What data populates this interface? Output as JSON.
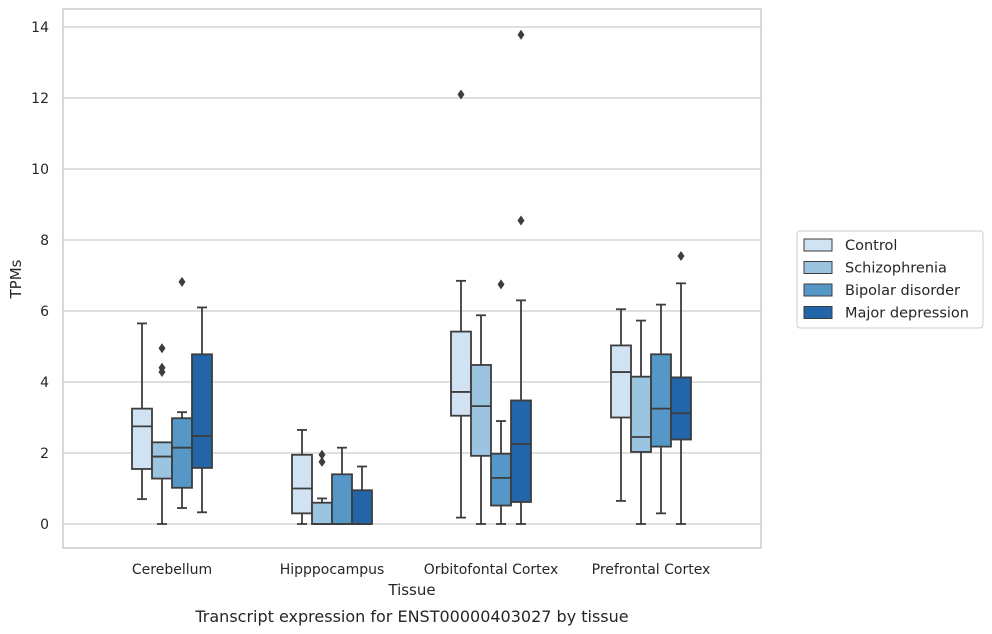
{
  "chart_data": {
    "type": "box",
    "title": "",
    "caption": "Transcript expression for ENST00000403027 by tissue",
    "xlabel": "Tissue",
    "ylabel": "TPMs",
    "ylim": [
      -0.65,
      14.5
    ],
    "yticks": [
      0,
      2,
      4,
      6,
      8,
      10,
      12,
      14
    ],
    "ytick_labels": [
      "0",
      "2",
      "4",
      "6",
      "8",
      "10",
      "12",
      "14"
    ],
    "grid": "horizontal",
    "legend_position": "right",
    "categories": [
      "Cerebellum",
      "Hipppocampus",
      "Orbitofontal Cortex",
      "Prefrontal Cortex"
    ],
    "series": [
      {
        "name": "Control",
        "color": "#d1e2f2",
        "boxes": [
          {
            "whislo": 0.7,
            "q1": 1.55,
            "med": 2.75,
            "q3": 3.25,
            "whishi": 5.65,
            "fliers": []
          },
          {
            "whislo": 0.0,
            "q1": 0.3,
            "med": 1.0,
            "q3": 1.95,
            "whishi": 2.65,
            "fliers": []
          },
          {
            "whislo": 0.18,
            "q1": 3.05,
            "med": 3.72,
            "q3": 5.42,
            "whishi": 6.85,
            "fliers": [
              12.1
            ]
          },
          {
            "whislo": 0.65,
            "q1": 3.0,
            "med": 4.28,
            "q3": 5.03,
            "whishi": 6.05,
            "fliers": []
          }
        ]
      },
      {
        "name": "Schizophrenia",
        "color": "#9ac4e0",
        "boxes": [
          {
            "whislo": 0.0,
            "q1": 1.28,
            "med": 1.9,
            "q3": 2.3,
            "whishi": 2.3,
            "fliers": [
              4.28,
              4.4,
              4.95
            ]
          },
          {
            "whislo": 0.0,
            "q1": 0.0,
            "med": 0.0,
            "q3": 0.6,
            "whishi": 0.72,
            "fliers": [
              1.75,
              1.95
            ]
          },
          {
            "whislo": 0.0,
            "q1": 1.92,
            "med": 3.32,
            "q3": 4.48,
            "whishi": 5.88,
            "fliers": []
          },
          {
            "whislo": 0.0,
            "q1": 2.03,
            "med": 2.45,
            "q3": 4.15,
            "whishi": 5.73,
            "fliers": []
          }
        ]
      },
      {
        "name": "Bipolar disorder",
        "color": "#5597c6",
        "boxes": [
          {
            "whislo": 0.45,
            "q1": 1.02,
            "med": 2.15,
            "q3": 2.98,
            "whishi": 3.15,
            "fliers": [
              6.82
            ]
          },
          {
            "whislo": 0.0,
            "q1": 0.0,
            "med": 0.0,
            "q3": 1.4,
            "whishi": 2.15,
            "fliers": []
          },
          {
            "whislo": 0.0,
            "q1": 0.52,
            "med": 1.3,
            "q3": 1.98,
            "whishi": 2.9,
            "fliers": [
              6.75
            ]
          },
          {
            "whislo": 0.3,
            "q1": 2.18,
            "med": 3.25,
            "q3": 4.78,
            "whishi": 6.18,
            "fliers": []
          }
        ]
      },
      {
        "name": "Major depression",
        "color": "#2265a9",
        "boxes": [
          {
            "whislo": 0.33,
            "q1": 1.58,
            "med": 2.48,
            "q3": 4.78,
            "whishi": 6.1,
            "fliers": []
          },
          {
            "whislo": 0.0,
            "q1": 0.0,
            "med": 0.0,
            "q3": 0.95,
            "whishi": 1.62,
            "fliers": []
          },
          {
            "whislo": 0.0,
            "q1": 0.62,
            "med": 2.25,
            "q3": 3.48,
            "whishi": 6.3,
            "fliers": [
              8.55,
              13.78
            ]
          },
          {
            "whislo": 0.0,
            "q1": 2.38,
            "med": 3.12,
            "q3": 4.13,
            "whishi": 6.78,
            "fliers": [
              7.55
            ]
          }
        ]
      }
    ]
  }
}
